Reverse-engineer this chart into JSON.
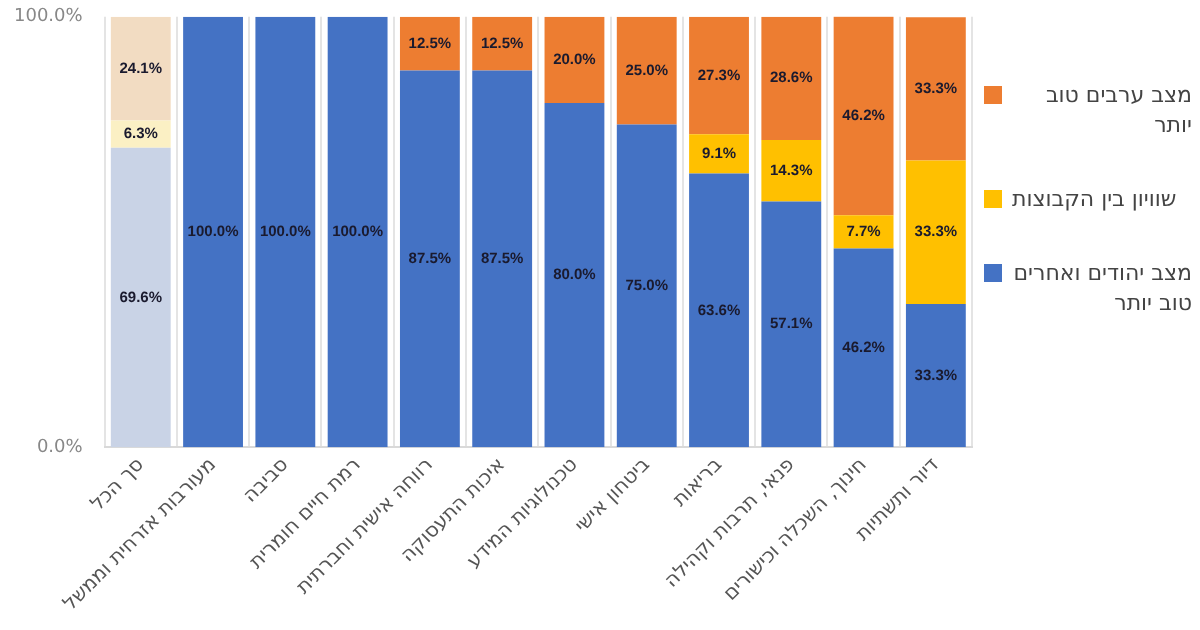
{
  "chart_data": {
    "type": "bar",
    "stacked": true,
    "categories": [
      "סך הכל",
      "מעורבות אזרחית וממשל",
      "סביבה",
      "רמת חיים חומרית",
      "רווחה אישית וחברתית",
      "איכות התעסוקה",
      "טכנולוגיות המידע",
      "ביטחון אישי",
      "בריאות",
      "פנאי, תרבות וקהילה",
      "חינוך, השכלה וכישורים",
      "דיור ותשתיות"
    ],
    "series": [
      {
        "name": "מצב יהודים ואחרים טוב יותר",
        "color": "#4472c4",
        "colors": [
          "#c9d3e6",
          "#4472c4",
          "#4472c4",
          "#4472c4",
          "#4472c4",
          "#4472c4",
          "#4472c4",
          "#4472c4",
          "#4472c4",
          "#4472c4",
          "#4472c4",
          "#4472c4"
        ],
        "values": [
          69.6,
          100,
          100,
          100,
          87.5,
          87.5,
          80,
          75,
          63.6,
          57.1,
          46.2,
          33.3
        ],
        "value_labels": [
          "69.6%",
          "100.0%",
          "100.0%",
          "100.0%",
          "87.5%",
          "87.5%",
          "80.0%",
          "75.0%",
          "63.6%",
          "57.1%",
          "46.2%",
          "33.3%"
        ]
      },
      {
        "name": "שוויון בין הקבוצות",
        "color": "#ffc000",
        "colors": [
          "#fbf0c4",
          "#ffc000",
          "#ffc000",
          "#ffc000",
          "#ffc000",
          "#ffc000",
          "#ffc000",
          "#ffc000",
          "#ffc000",
          "#ffc000",
          "#ffc000",
          "#ffc000"
        ],
        "values": [
          6.3,
          0,
          0,
          0,
          0,
          0,
          0,
          0,
          9.1,
          14.3,
          7.7,
          33.3
        ],
        "value_labels": [
          "6.3%",
          null,
          null,
          null,
          null,
          null,
          null,
          null,
          "9.1%",
          "14.3%",
          "7.7%",
          "33.3%"
        ]
      },
      {
        "name": "מצב ערבים טוב יותר",
        "color": "#ed7d31",
        "colors": [
          "#f2dcc2",
          "#ed7d31",
          "#ed7d31",
          "#ed7d31",
          "#ed7d31",
          "#ed7d31",
          "#ed7d31",
          "#ed7d31",
          "#ed7d31",
          "#ed7d31",
          "#ed7d31",
          "#ed7d31"
        ],
        "values": [
          24.1,
          0,
          0,
          0,
          12.5,
          12.5,
          20,
          25,
          27.3,
          28.6,
          46.2,
          33.3
        ],
        "value_labels": [
          "24.1%",
          null,
          null,
          null,
          "12.5%",
          "12.5%",
          "20.0%",
          "25.0%",
          "27.3%",
          "28.6%",
          "46.2%",
          "33.3%"
        ]
      }
    ],
    "ylim": [
      0,
      100
    ],
    "yticks": [
      {
        "value": 0,
        "label": "0.0%"
      },
      {
        "value": 100,
        "label": "100.0%"
      }
    ],
    "grid": "x",
    "legend": "right"
  }
}
